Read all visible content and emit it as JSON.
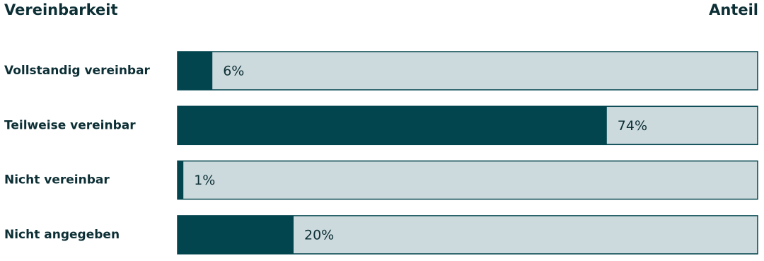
{
  "chart_data": {
    "type": "bar",
    "orientation": "horizontal",
    "category_axis_label": "Vereinbarkeit",
    "value_axis_label": "Anteil",
    "categories": [
      "Vollstandig vereinbar",
      "Teilweise vereinbar",
      "Nicht vereinbar",
      "Nicht angegeben"
    ],
    "values": [
      6,
      74,
      1,
      20
    ],
    "value_labels": [
      "6%",
      "74%",
      "1%",
      "20%"
    ],
    "xlim": [
      0,
      100
    ],
    "color": "#03454f",
    "track_color": "#cddadd"
  }
}
